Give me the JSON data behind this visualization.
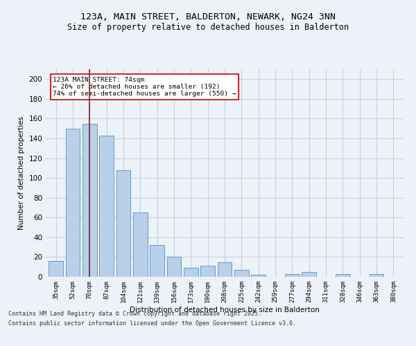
{
  "title_line1": "123A, MAIN STREET, BALDERTON, NEWARK, NG24 3NN",
  "title_line2": "Size of property relative to detached houses in Balderton",
  "xlabel": "Distribution of detached houses by size in Balderton",
  "ylabel": "Number of detached properties",
  "categories": [
    "35sqm",
    "52sqm",
    "70sqm",
    "87sqm",
    "104sqm",
    "121sqm",
    "139sqm",
    "156sqm",
    "173sqm",
    "190sqm",
    "208sqm",
    "225sqm",
    "242sqm",
    "259sqm",
    "277sqm",
    "294sqm",
    "311sqm",
    "328sqm",
    "346sqm",
    "363sqm",
    "380sqm"
  ],
  "values": [
    16,
    150,
    155,
    143,
    108,
    65,
    32,
    20,
    9,
    11,
    15,
    7,
    2,
    0,
    3,
    5,
    0,
    3,
    0,
    3,
    0
  ],
  "bar_color": "#b8d0ea",
  "bar_edge_color": "#6699cc",
  "vline_x_index": 2,
  "vline_color": "#cc0000",
  "annotation_line1": "123A MAIN STREET: 74sqm",
  "annotation_line2": "← 26% of detached houses are smaller (192)",
  "annotation_line3": "74% of semi-detached houses are larger (550) →",
  "annotation_box_color": "#ffffff",
  "annotation_box_edge": "#cc0000",
  "ylim": [
    0,
    210
  ],
  "yticks": [
    0,
    20,
    40,
    60,
    80,
    100,
    120,
    140,
    160,
    180,
    200
  ],
  "footer_line1": "Contains HM Land Registry data © Crown copyright and database right 2025.",
  "footer_line2": "Contains public sector information licensed under the Open Government Licence v3.0.",
  "bg_color": "#edf2f9",
  "grid_color": "#c5d0e0"
}
